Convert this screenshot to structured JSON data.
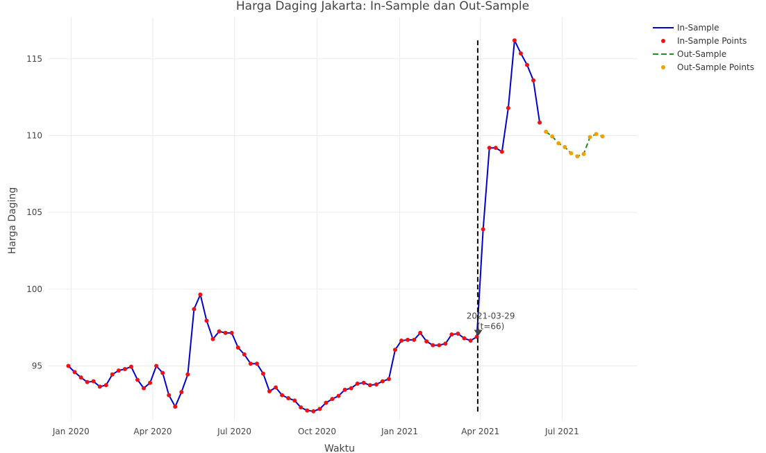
{
  "chart_data": {
    "type": "line",
    "title": "Harga Daging Jakarta: In-Sample dan Out-Sample",
    "xlabel": "Waktu",
    "ylabel": "Harga Daging",
    "x_range": [
      "2019-12-07",
      "2021-09-23"
    ],
    "ylim": [
      91.5,
      117.7
    ],
    "y_ticks": [
      95,
      100,
      105,
      110,
      115
    ],
    "x_ticks": [
      {
        "date": "2020-01-01",
        "label": "Jan 2020"
      },
      {
        "date": "2020-04-01",
        "label": "Apr 2020"
      },
      {
        "date": "2020-07-01",
        "label": "Jul 2020"
      },
      {
        "date": "2020-10-01",
        "label": "Oct 2020"
      },
      {
        "date": "2021-01-01",
        "label": "Jan 2021"
      },
      {
        "date": "2021-04-01",
        "label": "Apr 2021"
      },
      {
        "date": "2021-07-01",
        "label": "Jul 2021"
      }
    ],
    "grid": true,
    "legend_position": "top-right",
    "series": [
      {
        "name": "In-Sample",
        "color": "#0000cc",
        "line_style": "solid",
        "x": [
          "2019-12-29",
          "2020-01-05",
          "2020-01-12",
          "2020-01-19",
          "2020-01-26",
          "2020-02-02",
          "2020-02-09",
          "2020-02-16",
          "2020-02-23",
          "2020-03-01",
          "2020-03-08",
          "2020-03-15",
          "2020-03-22",
          "2020-03-29",
          "2020-04-05",
          "2020-04-12",
          "2020-04-19",
          "2020-04-26",
          "2020-05-03",
          "2020-05-10",
          "2020-05-17",
          "2020-05-24",
          "2020-05-31",
          "2020-06-07",
          "2020-06-14",
          "2020-06-21",
          "2020-06-28",
          "2020-07-05",
          "2020-07-12",
          "2020-07-19",
          "2020-07-26",
          "2020-08-02",
          "2020-08-09",
          "2020-08-16",
          "2020-08-23",
          "2020-08-30",
          "2020-09-06",
          "2020-09-13",
          "2020-09-20",
          "2020-09-27",
          "2020-10-04",
          "2020-10-11",
          "2020-10-18",
          "2020-10-25",
          "2020-11-01",
          "2020-11-08",
          "2020-11-15",
          "2020-11-22",
          "2020-11-29",
          "2020-12-06",
          "2020-12-13",
          "2020-12-20",
          "2020-12-27",
          "2021-01-03",
          "2021-01-10",
          "2021-01-17",
          "2021-01-24",
          "2021-01-31",
          "2021-02-07",
          "2021-02-14",
          "2021-02-21",
          "2021-02-28",
          "2021-03-07",
          "2021-03-14",
          "2021-03-21",
          "2021-03-28",
          "2021-04-04",
          "2021-04-11",
          "2021-04-18",
          "2021-04-25",
          "2021-05-02",
          "2021-05-09",
          "2021-05-16",
          "2021-05-23",
          "2021-05-30",
          "2021-06-06"
        ],
        "values": [
          95.0,
          94.6,
          94.25,
          93.95,
          94.0,
          93.65,
          93.75,
          94.45,
          94.7,
          94.8,
          94.95,
          94.1,
          93.55,
          93.9,
          95.0,
          94.55,
          93.1,
          92.35,
          93.3,
          94.45,
          98.7,
          99.65,
          97.95,
          96.75,
          97.25,
          97.15,
          97.15,
          96.2,
          95.75,
          95.15,
          95.15,
          94.5,
          93.35,
          93.6,
          93.1,
          92.9,
          92.75,
          92.3,
          92.1,
          92.05,
          92.2,
          92.6,
          92.85,
          93.05,
          93.45,
          93.55,
          93.85,
          93.9,
          93.75,
          93.8,
          94.0,
          94.15,
          96.05,
          96.65,
          96.7,
          96.7,
          97.15,
          96.6,
          96.35,
          96.35,
          96.45,
          97.05,
          97.1,
          96.8,
          96.65,
          96.9,
          103.9,
          109.2,
          109.2,
          108.95,
          111.8,
          116.2,
          115.35,
          114.6,
          113.6,
          110.85
        ],
        "show_points": false
      },
      {
        "name": "In-Sample Points",
        "color": "#ee1111",
        "mode": "markers"
      },
      {
        "name": "Out-Sample",
        "color": "#228b22",
        "line_style": "dashed",
        "x": [
          "2021-06-13",
          "2021-06-20",
          "2021-06-27",
          "2021-07-04",
          "2021-07-11",
          "2021-07-18",
          "2021-07-25",
          "2021-08-01",
          "2021-08-08",
          "2021-08-15"
        ],
        "values": [
          110.25,
          109.95,
          109.5,
          109.25,
          108.85,
          108.65,
          108.8,
          109.9,
          110.1,
          109.95
        ]
      },
      {
        "name": "Out-Sample Points",
        "color": "#f2a100",
        "mode": "markers"
      }
    ],
    "split_line": {
      "date": "2021-03-29",
      "ymin": 92.0,
      "ymax": 116.2
    },
    "annotation": {
      "line1": "2021-03-29",
      "line2": "(t=66)",
      "date": "2021-03-28",
      "value": 96.9
    }
  }
}
